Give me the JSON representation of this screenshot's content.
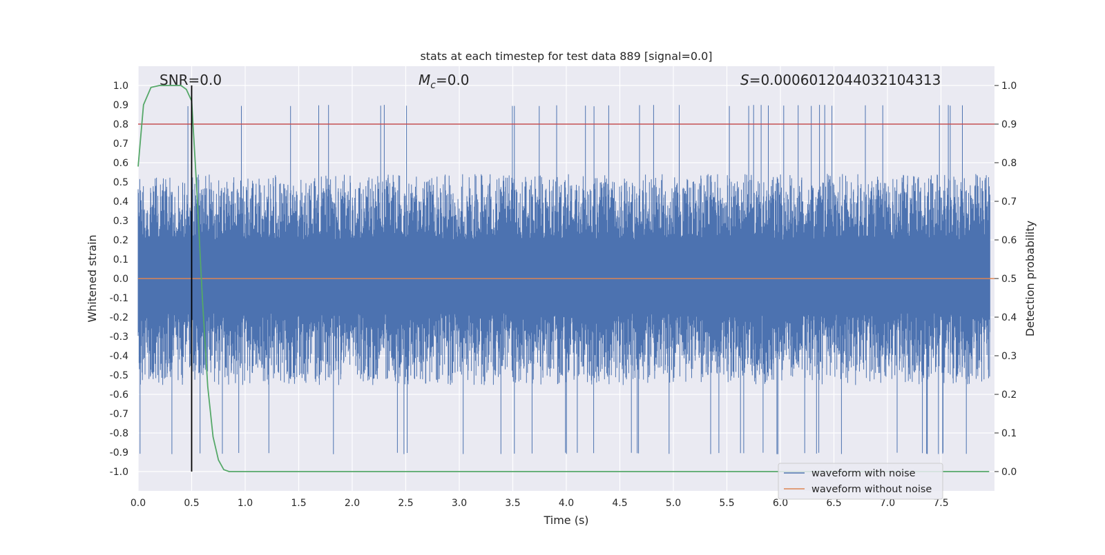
{
  "chart_data": {
    "type": "line",
    "title": "stats at each timestep for test data 889 [signal=0.0]",
    "xlabel": "Time (s)",
    "ylabel": "Whitened strain",
    "ylabel_right": "Detection probability",
    "xlim": [
      0.0,
      8.0
    ],
    "ylim": [
      -1.1,
      1.1
    ],
    "ylim_right": [
      -0.05,
      1.05
    ],
    "x_ticks": [
      "0.0",
      "0.5",
      "1.0",
      "1.5",
      "2.0",
      "2.5",
      "3.0",
      "3.5",
      "4.0",
      "4.5",
      "5.0",
      "5.5",
      "6.0",
      "6.5",
      "7.0",
      "7.5"
    ],
    "y_ticks": [
      "1.0",
      "0.9",
      "0.8",
      "0.7",
      "0.6",
      "0.5",
      "0.4",
      "0.3",
      "0.2",
      "0.1",
      "0.0",
      "-0.1",
      "-0.2",
      "-0.3",
      "-0.4",
      "-0.5",
      "-0.6",
      "-0.7",
      "-0.8",
      "-0.9",
      "-1.0"
    ],
    "y_ticks_right": [
      "1.0",
      "0.9",
      "0.8",
      "0.7",
      "0.6",
      "0.5",
      "0.4",
      "0.3",
      "0.2",
      "0.1",
      "0.0"
    ],
    "annotations": {
      "snr": "SNR=0.0",
      "mc_symbol": "M",
      "mc_sub": "c",
      "mc_value": "=0.0",
      "s_symbol": "S",
      "s_value": "=0.0006012044032104313"
    },
    "grid": true,
    "legend_position": "lower right",
    "series": [
      {
        "name": "waveform with noise",
        "axis": "left",
        "color": "#4c72b0",
        "description_range": [
          -1.0,
          1.0
        ]
      },
      {
        "name": "waveform without noise",
        "axis": "left",
        "color": "#dd8452",
        "values_constant": 0.0
      }
    ],
    "detection_probability": {
      "axis": "right",
      "color": "#55a868",
      "x": [
        0.0,
        0.05,
        0.12,
        0.2,
        0.3,
        0.4,
        0.45,
        0.5,
        0.55,
        0.6,
        0.65,
        0.7,
        0.75,
        0.8,
        0.85,
        0.9,
        1.0,
        2.0,
        3.0,
        4.0,
        5.0,
        6.0,
        7.0,
        7.95
      ],
      "y": [
        0.79,
        0.95,
        0.995,
        1.0,
        1.0,
        1.0,
        0.99,
        0.96,
        0.72,
        0.45,
        0.22,
        0.09,
        0.03,
        0.005,
        0.0,
        0.0,
        0.0,
        0.0,
        0.0,
        0.0,
        0.0,
        0.0,
        0.0,
        0.0
      ]
    },
    "threshold": {
      "axis": "right",
      "value": 0.9,
      "color": "#c44e52"
    },
    "marker_time": {
      "x": 0.5,
      "y_range_right": [
        0.0,
        1.0
      ],
      "color": "#000000"
    }
  }
}
